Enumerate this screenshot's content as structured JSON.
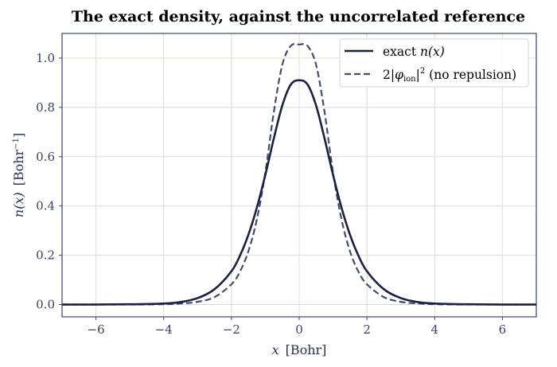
{
  "chart_data": {
    "type": "line",
    "title": "The exact density, against the uncorrelated reference",
    "xlabel": {
      "var": "x",
      "unit": "[Bohr]"
    },
    "ylabel": {
      "var": "n(x)",
      "unit_prefix": "[Bohr",
      "unit_exp": "−1",
      "unit_suffix": "]"
    },
    "xlim": [
      -7,
      7
    ],
    "ylim": [
      -0.05,
      1.1
    ],
    "xticks": [
      -6,
      -4,
      -2,
      0,
      2,
      4,
      6
    ],
    "xtick_labels": [
      "−6",
      "−4",
      "−2",
      "0",
      "2",
      "4",
      "6"
    ],
    "yticks": [
      0.0,
      0.2,
      0.4,
      0.6,
      0.8,
      1.0
    ],
    "ytick_labels": [
      "0.0",
      "0.2",
      "0.4",
      "0.6",
      "0.8",
      "1.0"
    ],
    "grid": true,
    "legend_position": "top-right",
    "x": [
      -7,
      -6,
      -5,
      -4,
      -3.5,
      -3,
      -2.5,
      -2,
      -1.75,
      -1.5,
      -1.25,
      -1,
      -0.75,
      -0.5,
      -0.25,
      0,
      0.25,
      0.5,
      0.75,
      1,
      1.25,
      1.5,
      1.75,
      2,
      2.5,
      3,
      3.5,
      4,
      5,
      6,
      7
    ],
    "series": [
      {
        "name": "exact n(x)",
        "label_parts": {
          "text": "exact ",
          "math": "n(x)"
        },
        "style": "solid",
        "color": "#1a2240",
        "values": [
          0.0,
          0.0,
          0.001,
          0.004,
          0.01,
          0.026,
          0.062,
          0.135,
          0.198,
          0.283,
          0.393,
          0.526,
          0.673,
          0.807,
          0.892,
          0.91,
          0.892,
          0.807,
          0.673,
          0.526,
          0.393,
          0.283,
          0.198,
          0.135,
          0.062,
          0.026,
          0.01,
          0.004,
          0.001,
          0.0,
          0.0
        ]
      },
      {
        "name": "2|φion|² (no repulsion)",
        "label_parts": {
          "coef": "2|",
          "phi": "φ",
          "sub": "ion",
          "close": "|",
          "sup": "2",
          "text": " (no repulsion)"
        },
        "style": "dashed",
        "color": "#464d66",
        "values": [
          0.0,
          0.0,
          0.0,
          0.001,
          0.004,
          0.011,
          0.03,
          0.082,
          0.133,
          0.216,
          0.345,
          0.535,
          0.78,
          0.972,
          1.049,
          1.055,
          1.049,
          0.972,
          0.78,
          0.535,
          0.345,
          0.216,
          0.133,
          0.082,
          0.03,
          0.011,
          0.004,
          0.001,
          0.0,
          0.0,
          0.0
        ]
      }
    ]
  }
}
